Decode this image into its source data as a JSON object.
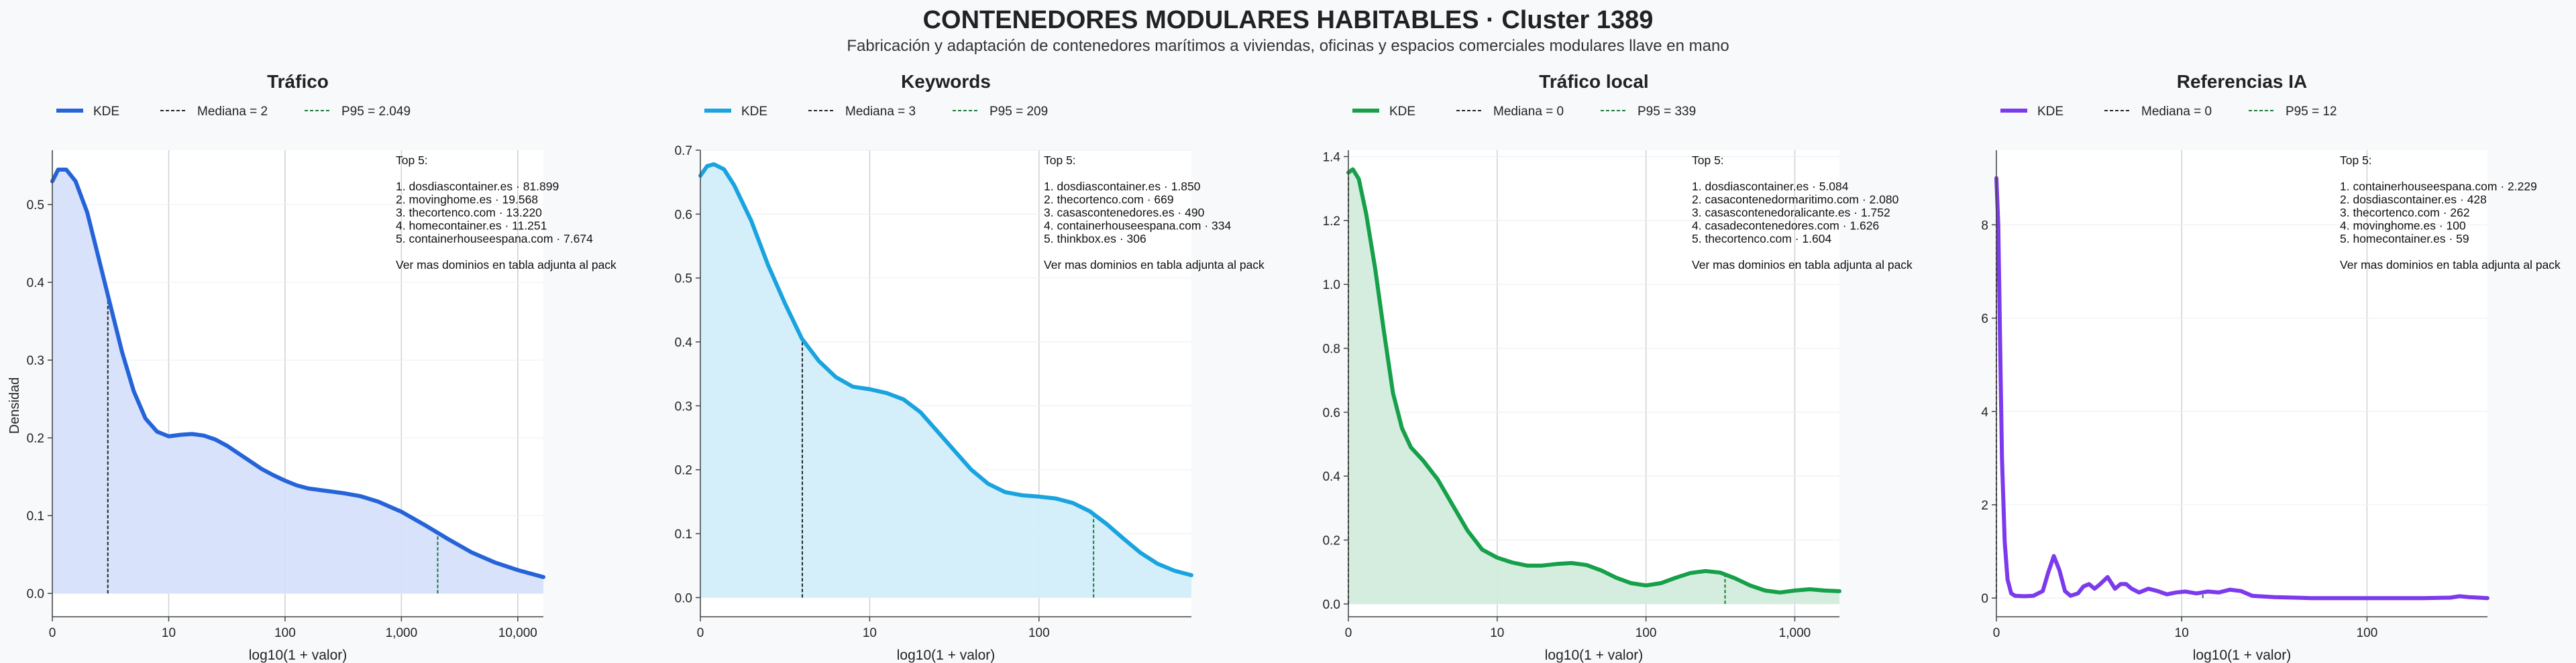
{
  "figure": {
    "title": "CONTENEDORES MODULARES HABITABLES · Cluster 1389",
    "subtitle": "Fabricación y adaptación de contenedores marítimos a viviendas, oficinas y espacios comerciales modulares llave en mano",
    "y_label": "Densidad",
    "colors": {
      "background": "#f7f9fb",
      "median": "#222222",
      "p95": "#1a7a3a"
    }
  },
  "chart_data": [
    {
      "type": "area",
      "title": "Tráfico",
      "xlabel": "log10(1 + valor)",
      "ylabel": "Densidad",
      "color": "#2563d9",
      "fill": "#d6e0fa",
      "x_scale": "log10(1+x)",
      "xlim_log": [
        0,
        4.22
      ],
      "ylim": [
        -0.03,
        0.57
      ],
      "xticks": [
        {
          "v": 0,
          "label": "0"
        },
        {
          "v": 1,
          "label": "10"
        },
        {
          "v": 2,
          "label": "100"
        },
        {
          "v": 3,
          "label": "1,000"
        },
        {
          "v": 4,
          "label": "10,000"
        }
      ],
      "yticks": [
        {
          "v": 0,
          "label": "0.0"
        },
        {
          "v": 0.1,
          "label": "0.1"
        },
        {
          "v": 0.2,
          "label": "0.2"
        },
        {
          "v": 0.3,
          "label": "0.3"
        },
        {
          "v": 0.4,
          "label": "0.4"
        },
        {
          "v": 0.5,
          "label": "0.5"
        }
      ],
      "kde": [
        [
          0,
          0.53
        ],
        [
          0.05,
          0.545
        ],
        [
          0.12,
          0.545
        ],
        [
          0.2,
          0.53
        ],
        [
          0.3,
          0.49
        ],
        [
          0.4,
          0.43
        ],
        [
          0.5,
          0.37
        ],
        [
          0.6,
          0.31
        ],
        [
          0.7,
          0.26
        ],
        [
          0.8,
          0.225
        ],
        [
          0.9,
          0.208
        ],
        [
          1.0,
          0.202
        ],
        [
          1.1,
          0.204
        ],
        [
          1.2,
          0.205
        ],
        [
          1.3,
          0.203
        ],
        [
          1.4,
          0.198
        ],
        [
          1.5,
          0.19
        ],
        [
          1.6,
          0.18
        ],
        [
          1.7,
          0.17
        ],
        [
          1.8,
          0.16
        ],
        [
          1.9,
          0.152
        ],
        [
          2.0,
          0.145
        ],
        [
          2.1,
          0.139
        ],
        [
          2.2,
          0.135
        ],
        [
          2.35,
          0.132
        ],
        [
          2.5,
          0.129
        ],
        [
          2.65,
          0.125
        ],
        [
          2.8,
          0.118
        ],
        [
          3.0,
          0.105
        ],
        [
          3.2,
          0.088
        ],
        [
          3.4,
          0.07
        ],
        [
          3.6,
          0.053
        ],
        [
          3.8,
          0.04
        ],
        [
          4.0,
          0.03
        ],
        [
          4.22,
          0.021
        ]
      ],
      "median": 2,
      "median_label": "Mediana = 2",
      "p95": 2049,
      "p95_label": "P95 = 2.049",
      "legend": [
        "KDE",
        "Mediana = 2",
        "P95 = 2.049"
      ],
      "top": {
        "header": "Top 5:",
        "items": [
          "1. dosdiascontainer.es · 81.899",
          "2. movinghome.es · 19.568",
          "3. thecortenco.com · 13.220",
          "4. homecontainer.es · 11.251",
          "5. containerhouseespana.com · 7.674"
        ],
        "footer": "Ver mas dominios en tabla adjunta al pack"
      }
    },
    {
      "type": "area",
      "title": "Keywords",
      "xlabel": "log10(1 + valor)",
      "ylabel": "",
      "color": "#19a3df",
      "fill": "#d2eefa",
      "x_scale": "log10(1+x)",
      "xlim_log": [
        0,
        2.9
      ],
      "ylim": [
        -0.03,
        0.7
      ],
      "xticks": [
        {
          "v": 0,
          "label": "0"
        },
        {
          "v": 1,
          "label": "10"
        },
        {
          "v": 2,
          "label": "100"
        }
      ],
      "yticks": [
        {
          "v": 0,
          "label": "0.0"
        },
        {
          "v": 0.1,
          "label": "0.1"
        },
        {
          "v": 0.2,
          "label": "0.2"
        },
        {
          "v": 0.3,
          "label": "0.3"
        },
        {
          "v": 0.4,
          "label": "0.4"
        },
        {
          "v": 0.5,
          "label": "0.5"
        },
        {
          "v": 0.6,
          "label": "0.6"
        },
        {
          "v": 0.7,
          "label": "0.7"
        }
      ],
      "kde": [
        [
          0,
          0.66
        ],
        [
          0.04,
          0.675
        ],
        [
          0.08,
          0.678
        ],
        [
          0.14,
          0.67
        ],
        [
          0.2,
          0.645
        ],
        [
          0.3,
          0.59
        ],
        [
          0.4,
          0.52
        ],
        [
          0.5,
          0.46
        ],
        [
          0.6,
          0.405
        ],
        [
          0.7,
          0.37
        ],
        [
          0.8,
          0.345
        ],
        [
          0.9,
          0.33
        ],
        [
          1.0,
          0.326
        ],
        [
          1.1,
          0.32
        ],
        [
          1.2,
          0.31
        ],
        [
          1.3,
          0.29
        ],
        [
          1.4,
          0.26
        ],
        [
          1.5,
          0.23
        ],
        [
          1.6,
          0.2
        ],
        [
          1.7,
          0.178
        ],
        [
          1.8,
          0.165
        ],
        [
          1.9,
          0.16
        ],
        [
          2.0,
          0.158
        ],
        [
          2.1,
          0.155
        ],
        [
          2.2,
          0.148
        ],
        [
          2.3,
          0.135
        ],
        [
          2.4,
          0.115
        ],
        [
          2.5,
          0.092
        ],
        [
          2.6,
          0.07
        ],
        [
          2.7,
          0.053
        ],
        [
          2.8,
          0.042
        ],
        [
          2.9,
          0.035
        ]
      ],
      "median": 3,
      "median_label": "Mediana = 3",
      "p95": 209,
      "p95_label": "P95 = 209",
      "legend": [
        "KDE",
        "Mediana = 3",
        "P95 = 209"
      ],
      "top": {
        "header": "Top 5:",
        "items": [
          "1. dosdiascontainer.es · 1.850",
          "2. thecortenco.com · 669",
          "3. casascontenedores.es · 490",
          "4. containerhouseespana.com · 334",
          "5. thinkbox.es · 306"
        ],
        "footer": "Ver mas dominios en tabla adjunta al pack"
      }
    },
    {
      "type": "area",
      "title": "Tráfico local",
      "xlabel": "log10(1 + valor)",
      "ylabel": "",
      "color": "#16a04a",
      "fill": "#d3ecdc",
      "x_scale": "log10(1+x)",
      "xlim_log": [
        0,
        3.3
      ],
      "ylim": [
        -0.04,
        1.42
      ],
      "xticks": [
        {
          "v": 0,
          "label": "0"
        },
        {
          "v": 1,
          "label": "10"
        },
        {
          "v": 2,
          "label": "100"
        },
        {
          "v": 3,
          "label": "1,000"
        }
      ],
      "yticks": [
        {
          "v": 0,
          "label": "0.0"
        },
        {
          "v": 0.2,
          "label": "0.2"
        },
        {
          "v": 0.4,
          "label": "0.4"
        },
        {
          "v": 0.6,
          "label": "0.6"
        },
        {
          "v": 0.8,
          "label": "0.8"
        },
        {
          "v": 1.0,
          "label": "1.0"
        },
        {
          "v": 1.2,
          "label": "1.2"
        },
        {
          "v": 1.4,
          "label": "1.4"
        }
      ],
      "kde": [
        [
          0,
          1.35
        ],
        [
          0.03,
          1.36
        ],
        [
          0.07,
          1.33
        ],
        [
          0.12,
          1.22
        ],
        [
          0.18,
          1.05
        ],
        [
          0.24,
          0.85
        ],
        [
          0.3,
          0.66
        ],
        [
          0.36,
          0.55
        ],
        [
          0.42,
          0.49
        ],
        [
          0.5,
          0.45
        ],
        [
          0.6,
          0.39
        ],
        [
          0.7,
          0.31
        ],
        [
          0.8,
          0.23
        ],
        [
          0.9,
          0.17
        ],
        [
          1.0,
          0.145
        ],
        [
          1.1,
          0.13
        ],
        [
          1.2,
          0.12
        ],
        [
          1.3,
          0.12
        ],
        [
          1.4,
          0.125
        ],
        [
          1.5,
          0.128
        ],
        [
          1.6,
          0.122
        ],
        [
          1.7,
          0.105
        ],
        [
          1.8,
          0.082
        ],
        [
          1.9,
          0.065
        ],
        [
          2.0,
          0.058
        ],
        [
          2.1,
          0.065
        ],
        [
          2.2,
          0.082
        ],
        [
          2.3,
          0.097
        ],
        [
          2.4,
          0.103
        ],
        [
          2.5,
          0.098
        ],
        [
          2.6,
          0.08
        ],
        [
          2.7,
          0.058
        ],
        [
          2.8,
          0.042
        ],
        [
          2.9,
          0.036
        ],
        [
          3.0,
          0.042
        ],
        [
          3.1,
          0.046
        ],
        [
          3.2,
          0.042
        ],
        [
          3.3,
          0.04
        ]
      ],
      "median": 0,
      "median_label": "Mediana = 0",
      "p95": 339,
      "p95_label": "P95 = 339",
      "legend": [
        "KDE",
        "Mediana = 0",
        "P95 = 339"
      ],
      "top": {
        "header": "Top 5:",
        "items": [
          "1. dosdiascontainer.es · 5.084",
          "2. casacontenedormaritimo.com · 2.080",
          "3. casascontenedoralicante.es · 1.752",
          "4. casadecontenedores.com · 1.626",
          "5. thecortenco.com · 1.604"
        ],
        "footer": "Ver mas dominios en tabla adjunta al pack"
      }
    },
    {
      "type": "line",
      "title": "Referencias IA",
      "xlabel": "log10(1 + valor)",
      "ylabel": "",
      "color": "#7c3aed",
      "fill": "none",
      "x_scale": "log10(1+x)",
      "xlim_log": [
        0,
        2.65
      ],
      "ylim": [
        -0.4,
        9.6
      ],
      "xticks": [
        {
          "v": 0,
          "label": "0"
        },
        {
          "v": 1,
          "label": "10"
        },
        {
          "v": 2,
          "label": "100"
        }
      ],
      "yticks": [
        {
          "v": 0,
          "label": "0"
        },
        {
          "v": 2,
          "label": "2"
        },
        {
          "v": 4,
          "label": "4"
        },
        {
          "v": 6,
          "label": "6"
        },
        {
          "v": 8,
          "label": "8"
        }
      ],
      "kde": [
        [
          0,
          9.0
        ],
        [
          0.01,
          8.0
        ],
        [
          0.02,
          5.5
        ],
        [
          0.03,
          3.0
        ],
        [
          0.045,
          1.2
        ],
        [
          0.06,
          0.4
        ],
        [
          0.08,
          0.1
        ],
        [
          0.1,
          0.05
        ],
        [
          0.15,
          0.04
        ],
        [
          0.2,
          0.05
        ],
        [
          0.25,
          0.15
        ],
        [
          0.28,
          0.55
        ],
        [
          0.31,
          0.9
        ],
        [
          0.34,
          0.6
        ],
        [
          0.37,
          0.15
        ],
        [
          0.4,
          0.05
        ],
        [
          0.44,
          0.1
        ],
        [
          0.47,
          0.25
        ],
        [
          0.5,
          0.3
        ],
        [
          0.53,
          0.2
        ],
        [
          0.56,
          0.3
        ],
        [
          0.6,
          0.45
        ],
        [
          0.64,
          0.2
        ],
        [
          0.67,
          0.3
        ],
        [
          0.7,
          0.3
        ],
        [
          0.73,
          0.2
        ],
        [
          0.77,
          0.12
        ],
        [
          0.82,
          0.2
        ],
        [
          0.87,
          0.15
        ],
        [
          0.92,
          0.08
        ],
        [
          0.97,
          0.12
        ],
        [
          1.02,
          0.14
        ],
        [
          1.08,
          0.1
        ],
        [
          1.14,
          0.14
        ],
        [
          1.2,
          0.12
        ],
        [
          1.26,
          0.18
        ],
        [
          1.32,
          0.15
        ],
        [
          1.38,
          0.05
        ],
        [
          1.5,
          0.02
        ],
        [
          1.7,
          0.0
        ],
        [
          2.0,
          0.0
        ],
        [
          2.3,
          0.0
        ],
        [
          2.45,
          0.01
        ],
        [
          2.5,
          0.04
        ],
        [
          2.55,
          0.02
        ],
        [
          2.65,
          0.0
        ]
      ],
      "median": 0,
      "median_label": "Mediana = 0",
      "p95": 12,
      "p95_label": "P95 = 12",
      "legend": [
        "KDE",
        "Mediana = 0",
        "P95 = 12"
      ],
      "top": {
        "header": "Top 5:",
        "items": [
          "1. containerhouseespana.com · 2.229",
          "2. dosdiascontainer.es · 428",
          "3. thecortenco.com · 262",
          "4. movinghome.es · 100",
          "5. homecontainer.es · 59"
        ],
        "footer": "Ver mas dominios en tabla adjunta al pack"
      }
    }
  ]
}
